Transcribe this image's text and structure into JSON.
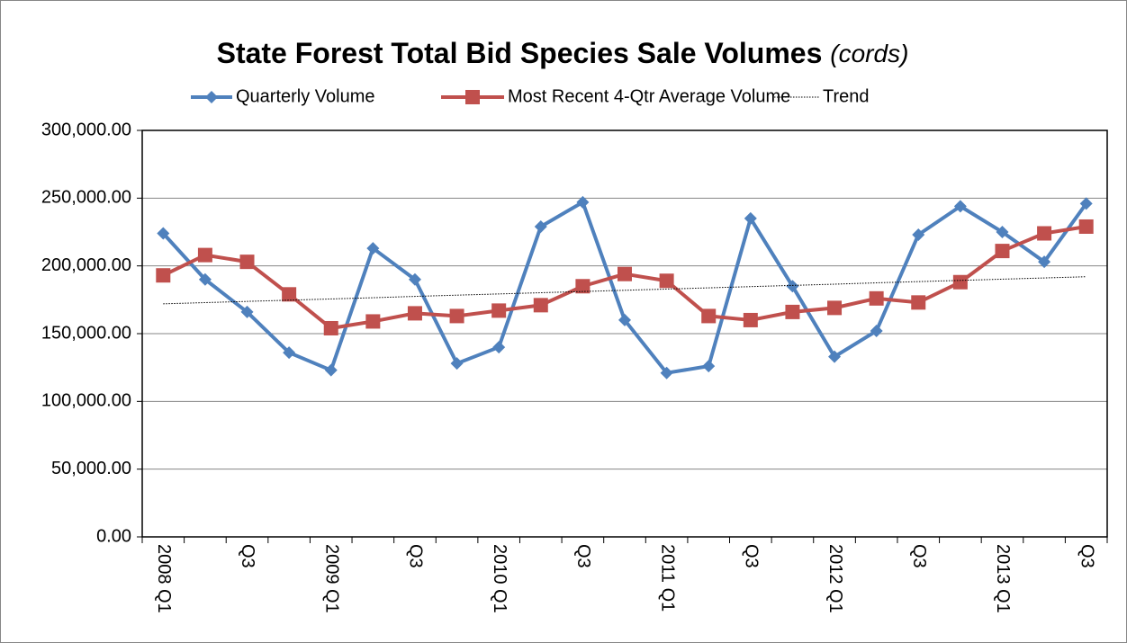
{
  "chart_data": {
    "type": "line",
    "title": "State Forest Total Bid Species Sale Volumes",
    "title_note": "(cords)",
    "categories": [
      "2008 Q1",
      null,
      "Q3",
      null,
      "2009 Q1",
      null,
      "Q3",
      null,
      "2010 Q1",
      null,
      "Q3",
      null,
      "2011 Q1",
      null,
      "Q3",
      null,
      "2012 Q1",
      null,
      "Q3",
      null,
      "2013 Q1",
      null,
      "Q3"
    ],
    "series": [
      {
        "name": "Quarterly Volume",
        "color": "#4f81bd",
        "marker": "diamond",
        "values": [
          224000,
          190000,
          166000,
          136000,
          123000,
          213000,
          190000,
          128000,
          140000,
          229000,
          247000,
          160000,
          121000,
          126000,
          235000,
          185000,
          133000,
          152000,
          223000,
          244000,
          225000,
          203000,
          246000
        ]
      },
      {
        "name": "Most Recent 4-Qtr Average Volume",
        "color": "#c0504d",
        "marker": "square",
        "values": [
          193000,
          208000,
          203000,
          179000,
          154000,
          159000,
          165000,
          163000,
          167000,
          171000,
          185000,
          194000,
          189000,
          163000,
          160000,
          166000,
          169000,
          176000,
          173000,
          188000,
          211000,
          224000,
          229000
        ]
      },
      {
        "name": "Trend",
        "color": "#000000",
        "marker": "none",
        "dash": true,
        "values": [
          172000,
          172900,
          173800,
          174700,
          175600,
          176500,
          177500,
          178400,
          179300,
          180200,
          181100,
          182000,
          182900,
          183800,
          184700,
          185600,
          186500,
          187500,
          188400,
          189300,
          190200,
          191100,
          192000
        ]
      }
    ],
    "ylim": [
      0,
      300000
    ],
    "yticks": [
      {
        "value": 0,
        "label": "0.00"
      },
      {
        "value": 50000,
        "label": "50,000.00"
      },
      {
        "value": 100000,
        "label": "100,000.00"
      },
      {
        "value": 150000,
        "label": "150,000.00"
      },
      {
        "value": 200000,
        "label": "200,000.00"
      },
      {
        "value": 250000,
        "label": "250,000.00"
      },
      {
        "value": 300000,
        "label": "300,000.00"
      }
    ],
    "grid": true,
    "legend": "top"
  }
}
